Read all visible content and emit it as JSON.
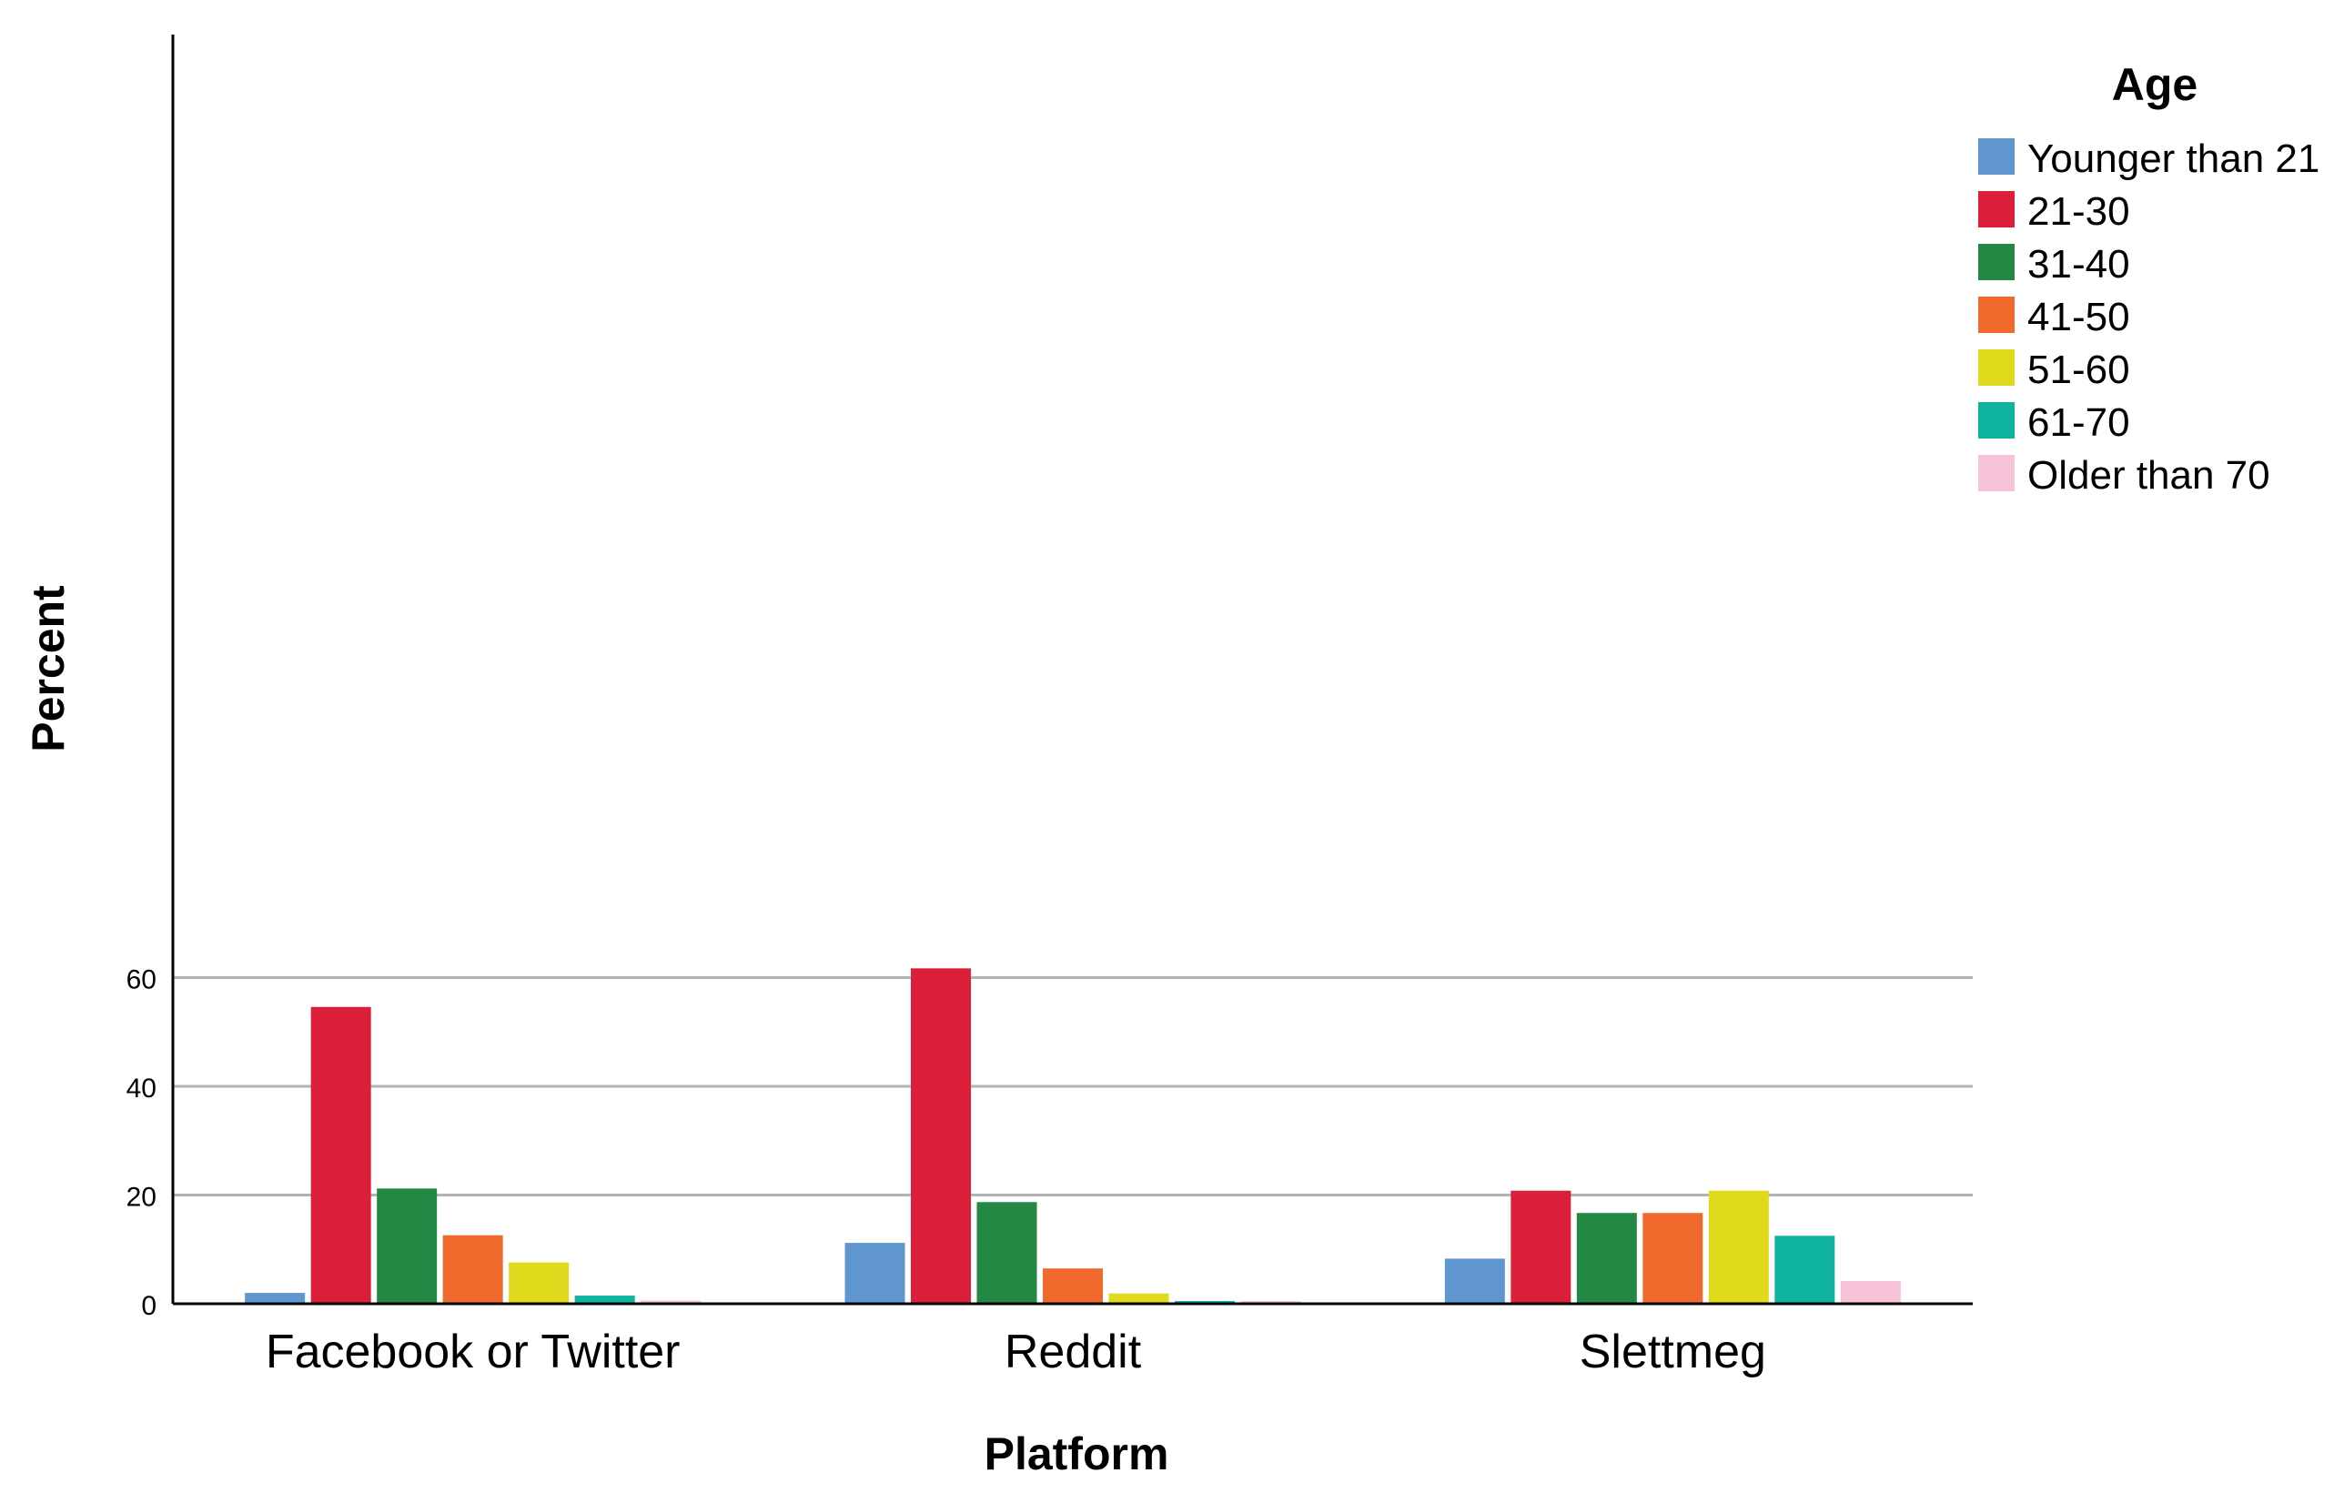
{
  "chart_data": {
    "type": "bar",
    "xlabel": "Platform",
    "ylabel": "Percent",
    "ylim": [
      0,
      75
    ],
    "yticks": [
      0,
      20,
      40,
      60
    ],
    "grid": true,
    "legend_title": "Age",
    "legend_position": "top-right",
    "categories": [
      "Facebook or Twitter",
      "Reddit",
      "Slettmeg"
    ],
    "series": [
      {
        "name": "Younger than 21",
        "color": "#5f96d0",
        "values": [
          2.0,
          11.2,
          8.3
        ]
      },
      {
        "name": "21-30",
        "color": "#db1f38",
        "values": [
          54.6,
          61.7,
          20.8
        ]
      },
      {
        "name": "31-40",
        "color": "#238843",
        "values": [
          21.2,
          18.7,
          16.7
        ]
      },
      {
        "name": "41-50",
        "color": "#f06a2d",
        "values": [
          12.6,
          6.5,
          16.7
        ]
      },
      {
        "name": "51-60",
        "color": "#e1d91b",
        "values": [
          7.6,
          1.9,
          20.8
        ]
      },
      {
        "name": "61-70",
        "color": "#10b3a0",
        "values": [
          1.5,
          0.1,
          12.5
        ]
      },
      {
        "name": "Older than 70",
        "color": "#f6c3d9",
        "values": [
          0.6,
          0.1,
          4.2
        ]
      }
    ]
  }
}
